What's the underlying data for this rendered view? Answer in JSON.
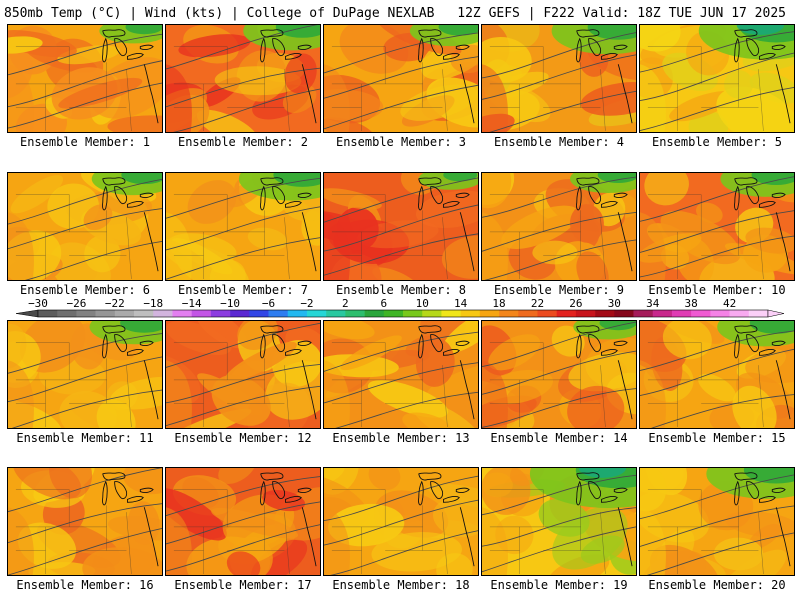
{
  "header": {
    "left": "850mb Temp (°C) | Wind (kts) | College of DuPage NEXLAB",
    "right": "12Z GEFS | F222 Valid: 18Z TUE JUN 17 2025"
  },
  "members": [
    {
      "label": "Ensemble Member: 1",
      "palette": [
        "#f6a512",
        "#f68f1c",
        "#ef6b1e",
        "#f7c813"
      ],
      "green": 0.05
    },
    {
      "label": "Ensemble Member: 2",
      "palette": [
        "#f26a20",
        "#e8311f",
        "#f39117",
        "#f7c913"
      ],
      "green": 0.18
    },
    {
      "label": "Ensemble Member: 3",
      "palette": [
        "#f6a512",
        "#f3861b",
        "#ec5d1f",
        "#f7c813"
      ],
      "green": 0.1
    },
    {
      "label": "Ensemble Member: 4",
      "palette": [
        "#f39a16",
        "#ed5d1e",
        "#f7c813",
        "#e8c418"
      ],
      "green": 0.25
    },
    {
      "label": "Ensemble Member: 5",
      "palette": [
        "#f7c813",
        "#f4d514",
        "#dfd01a",
        "#f6a512"
      ],
      "green": 0.35
    },
    {
      "label": "Ensemble Member: 6",
      "palette": [
        "#f6a512",
        "#f3911a",
        "#f7c813",
        "#f5b514"
      ],
      "green": 0.12
    },
    {
      "label": "Ensemble Member: 7",
      "palette": [
        "#f6a512",
        "#f7c813",
        "#f3911a",
        "#f4bd15"
      ],
      "green": 0.22
    },
    {
      "label": "Ensemble Member: 8",
      "palette": [
        "#ed5d1e",
        "#e8311f",
        "#f39117",
        "#f26a20"
      ],
      "green": 0.02
    },
    {
      "label": "Ensemble Member: 9",
      "palette": [
        "#f39117",
        "#f6a512",
        "#ed6a1e",
        "#f7c813"
      ],
      "green": 0.08
    },
    {
      "label": "Ensemble Member: 10",
      "palette": [
        "#f26a20",
        "#f39117",
        "#f6a512",
        "#f7c813"
      ],
      "green": 0.15
    },
    {
      "label": "Ensemble Member: 11",
      "palette": [
        "#f6a512",
        "#f3911a",
        "#f7c813",
        "#f5b514"
      ],
      "green": 0.14
    },
    {
      "label": "Ensemble Member: 12",
      "palette": [
        "#ed5d1e",
        "#f39117",
        "#f26a20",
        "#f7c813"
      ],
      "green": 0.0
    },
    {
      "label": "Ensemble Member: 13",
      "palette": [
        "#f39117",
        "#f6a512",
        "#ed6a1e",
        "#f7c813"
      ],
      "green": 0.0
    },
    {
      "label": "Ensemble Member: 14",
      "palette": [
        "#f39117",
        "#ed5d1e",
        "#f6a512",
        "#f7c813"
      ],
      "green": 0.05
    },
    {
      "label": "Ensemble Member: 15",
      "palette": [
        "#f6a512",
        "#f39117",
        "#f7c813",
        "#ed6a1e"
      ],
      "green": 0.18
    },
    {
      "label": "Ensemble Member: 16",
      "palette": [
        "#f6a512",
        "#f39117",
        "#ed6a1e",
        "#f7c813"
      ],
      "green": 0.0
    },
    {
      "label": "Ensemble Member: 17",
      "palette": [
        "#ed5d1e",
        "#f39117",
        "#e8311f",
        "#f6a512"
      ],
      "green": 0.0
    },
    {
      "label": "Ensemble Member: 18",
      "palette": [
        "#f6a512",
        "#f39117",
        "#f7c813",
        "#f5b514"
      ],
      "green": 0.0
    },
    {
      "label": "Ensemble Member: 19",
      "palette": [
        "#f7c813",
        "#f6a512",
        "#9ccb1c",
        "#f39117"
      ],
      "green": 0.45
    },
    {
      "label": "Ensemble Member: 20",
      "palette": [
        "#f6a512",
        "#f7c813",
        "#f39117",
        "#f4bd15"
      ],
      "green": 0.28
    }
  ],
  "colorbar": {
    "labels": [
      "−30",
      "−26",
      "−22",
      "−18",
      "−14",
      "−10",
      "−6",
      "−2",
      "2",
      "6",
      "10",
      "14",
      "18",
      "22",
      "26",
      "30",
      "34",
      "38",
      "42"
    ],
    "colors": [
      "#5c5c5c",
      "#6f6f6f",
      "#828282",
      "#969696",
      "#aaaaaa",
      "#bebebe",
      "#d2b4de",
      "#e37ff0",
      "#c355e6",
      "#8c3ce0",
      "#5a28d2",
      "#3246e6",
      "#2e7df0",
      "#22b8f0",
      "#26d6d6",
      "#29c8a0",
      "#2dbe6e",
      "#2aa63c",
      "#3fb526",
      "#78c81c",
      "#b6d81a",
      "#f0e619",
      "#f7c813",
      "#f6a512",
      "#f3861b",
      "#ef6b1e",
      "#ec4b1f",
      "#e3221f",
      "#c8141c",
      "#a30b16",
      "#86081c",
      "#a51c5a",
      "#c8288c",
      "#e03cb4",
      "#f05ad2",
      "#f582e6",
      "#f8aaf0",
      "#fbd0f8"
    ]
  }
}
